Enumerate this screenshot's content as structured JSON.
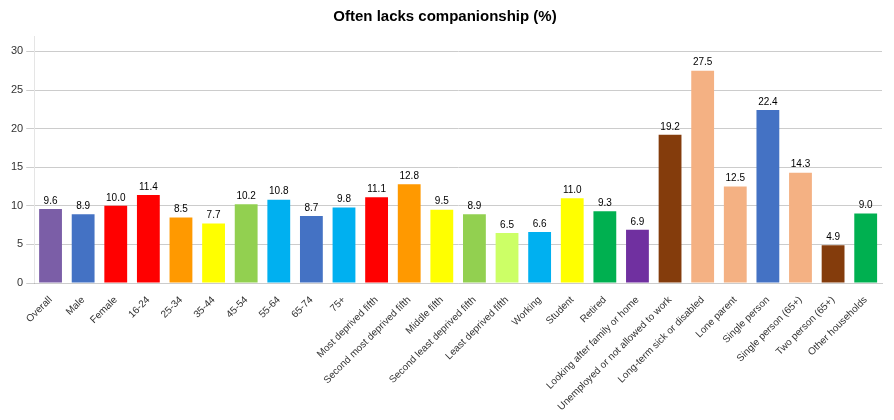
{
  "chart_data": {
    "type": "bar",
    "title": "Often lacks companionship (%)",
    "categories": [
      "Overall",
      "Male",
      "Female",
      "16-24",
      "25-34",
      "35-44",
      "45-54",
      "55-64",
      "65-74",
      "75+",
      "Most deprived fifth",
      "Second most deprived fifth",
      "Middle fifth",
      "Second least deprived fifth",
      "Least deprived fifth",
      "Working",
      "Student",
      "Retired",
      "Looking after family or home",
      "Unemployed or not allowed to work",
      "Long-term sick or disabled",
      "Lone parent",
      "Single person",
      "Single person (65+)",
      "Two person (65+)",
      "Other households"
    ],
    "values": [
      9.6,
      8.9,
      10.0,
      11.4,
      8.5,
      7.7,
      10.2,
      10.8,
      8.7,
      9.8,
      11.1,
      12.8,
      9.5,
      8.9,
      6.5,
      6.6,
      11.0,
      9.3,
      6.9,
      19.2,
      27.5,
      12.5,
      22.4,
      14.3,
      4.9,
      9.0
    ],
    "value_labels": [
      "9.6",
      "8.9",
      "10.0",
      "11.4",
      "8.5",
      "7.7",
      "10.2",
      "10.8",
      "8.7",
      "9.8",
      "11.1",
      "12.8",
      "9.5",
      "8.9",
      "6.5",
      "6.6",
      "11.0",
      "9.3",
      "6.9",
      "19.2",
      "27.5",
      "12.5",
      "22.4",
      "14.3",
      "4.9",
      "9.0"
    ],
    "colors": [
      "#7B5EA7",
      "#4472C4",
      "#FF0000",
      "#FF0000",
      "#FF9900",
      "#FFFF00",
      "#92D050",
      "#00B0F0",
      "#4472C4",
      "#00B0F0",
      "#FF0000",
      "#FF9900",
      "#FFFF00",
      "#92D050",
      "#CCFF66",
      "#00B0F0",
      "#FFFF00",
      "#00B050",
      "#7030A0",
      "#843C0C",
      "#F4B183",
      "#F4B183",
      "#4472C4",
      "#F4B183",
      "#843C0C",
      "#00B050"
    ],
    "ylim": [
      0,
      32
    ],
    "yticks": [
      0,
      5,
      10,
      15,
      20,
      25,
      30
    ],
    "grid": true,
    "data_labels": true
  }
}
